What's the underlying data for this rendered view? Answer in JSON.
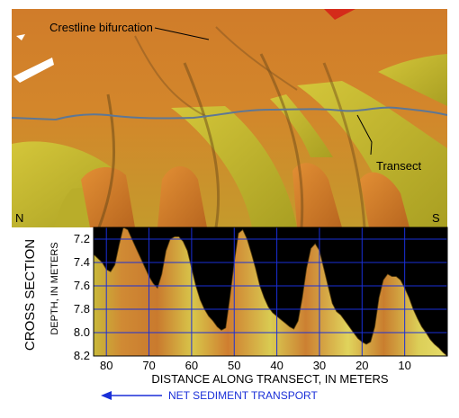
{
  "panels": {
    "upper": {
      "label_crestline": "Crestline bifurcation",
      "label_transect": "Transect",
      "label_north": "N",
      "label_south": "S"
    },
    "cross_section": {
      "side_title": "CROSS SECTION",
      "legend_text": "NET  SEDIMENT TRANSPORT"
    }
  },
  "colors": {
    "orange": "#d9832a",
    "yellow": "#c9bf2a",
    "transect_line": "#5d7796",
    "grid": "#1a2fd8",
    "arrow": "#1a2fd8",
    "profile_above": "#000000"
  },
  "chart_data": {
    "type": "area",
    "title": "",
    "xlabel": "DISTANCE ALONG TRANSECT, IN METERS",
    "ylabel": "DEPTH, IN METERS",
    "xlim": [
      83,
      0
    ],
    "ylim": [
      7.1,
      8.2
    ],
    "xticks": [
      80,
      70,
      60,
      50,
      40,
      30,
      20,
      10
    ],
    "yticks": [
      7.2,
      7.4,
      7.6,
      7.8,
      8.0,
      8.2
    ],
    "ytick_labels": [
      "7.2",
      "7.4",
      "7.6",
      "7.8",
      "8.0",
      "8.2"
    ],
    "grid": true,
    "x": [
      83,
      81,
      80,
      79,
      78,
      77,
      76,
      75,
      74,
      73,
      72,
      71,
      70,
      69,
      68,
      67,
      66,
      65,
      64,
      63,
      62,
      61,
      60,
      59,
      58,
      57,
      56,
      55,
      54,
      53,
      52,
      51,
      50,
      49,
      48,
      47,
      46,
      45,
      44,
      43,
      42,
      41,
      40,
      39,
      38,
      37,
      36,
      35,
      34,
      33,
      32,
      31,
      30,
      29,
      28,
      27,
      26,
      25,
      24,
      23,
      22,
      21,
      20,
      19,
      18,
      17,
      16,
      15,
      14,
      13,
      12,
      11,
      10,
      9,
      8,
      7,
      6,
      5,
      4,
      3,
      2,
      1,
      0
    ],
    "y": [
      7.33,
      7.4,
      7.46,
      7.48,
      7.42,
      7.25,
      7.1,
      7.12,
      7.2,
      7.28,
      7.36,
      7.44,
      7.52,
      7.58,
      7.62,
      7.5,
      7.3,
      7.2,
      7.18,
      7.18,
      7.22,
      7.3,
      7.45,
      7.6,
      7.72,
      7.8,
      7.86,
      7.9,
      7.95,
      7.98,
      7.96,
      7.7,
      7.4,
      7.15,
      7.12,
      7.2,
      7.32,
      7.45,
      7.6,
      7.7,
      7.78,
      7.83,
      7.86,
      7.89,
      7.92,
      7.95,
      7.97,
      7.9,
      7.7,
      7.45,
      7.28,
      7.24,
      7.3,
      7.45,
      7.6,
      7.75,
      7.82,
      7.85,
      7.9,
      7.95,
      8.0,
      8.05,
      8.08,
      8.1,
      8.08,
      7.95,
      7.7,
      7.55,
      7.5,
      7.52,
      7.52,
      7.55,
      7.62,
      7.7,
      7.8,
      7.88,
      7.95,
      8.0,
      8.06,
      8.1,
      8.13,
      8.17,
      8.2
    ]
  }
}
